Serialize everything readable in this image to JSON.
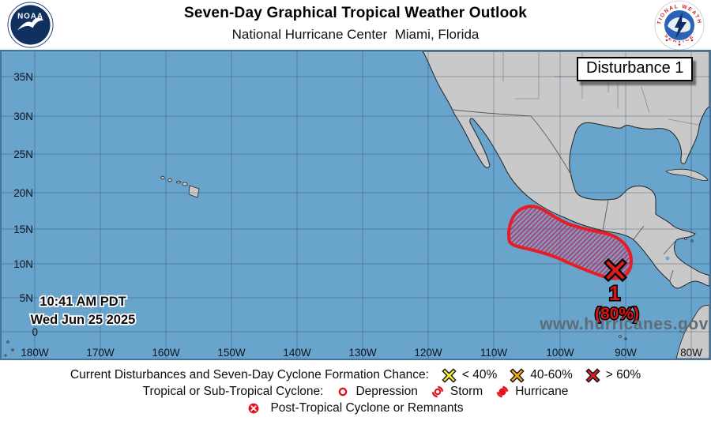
{
  "header": {
    "title": "Seven-Day Graphical Tropical Weather Outlook",
    "subtitle": "National Hurricane Center  Miami, Florida",
    "noaa_logo": "noaa-emblem",
    "nws_logo": "national-weather-service-emblem"
  },
  "map": {
    "disturbance_box_label": "Disturbance 1",
    "issued_time": "10:41 AM PDT",
    "issued_date": "Wed Jun 25 2025",
    "watermark": "www.hurricanes.gov",
    "disturbance_id": "1",
    "disturbance_probability": "(80%)",
    "lat_labels": [
      "35N",
      "30N",
      "25N",
      "20N",
      "15N",
      "10N",
      "5N",
      "0"
    ],
    "lon_labels": [
      "180W",
      "170W",
      "160W",
      "150W",
      "140W",
      "130W",
      "120W",
      "110W",
      "100W",
      "90W",
      "80W"
    ],
    "colors": {
      "ocean": "#68a4cb",
      "land": "#c9c9c9",
      "disturbance_outline": "#e81c24",
      "disturbance_hatch": "#b5305e",
      "high_chance_marker": "#dd1c1c",
      "label_red": "#dd1111"
    }
  },
  "legend": {
    "chance_title": "Current Disturbances and Seven-Day Cyclone Formation Chance:",
    "chance_items": [
      {
        "icon": "x-marker",
        "label": "< 40%",
        "color": "#f5ef3d"
      },
      {
        "icon": "x-marker",
        "label": "40-60%",
        "color": "#f2a71b"
      },
      {
        "icon": "x-marker",
        "label": "> 60%",
        "color": "#da2121"
      }
    ],
    "cyclone_title": "Tropical or Sub-Tropical Cyclone:",
    "cyclone_items": [
      {
        "icon": "depression",
        "label": "Depression"
      },
      {
        "icon": "storm",
        "label": "Storm"
      },
      {
        "icon": "hurricane",
        "label": "Hurricane"
      }
    ],
    "post_tropical_label": "Post-Tropical Cyclone or Remnants",
    "icon_color": "#e3131b"
  }
}
